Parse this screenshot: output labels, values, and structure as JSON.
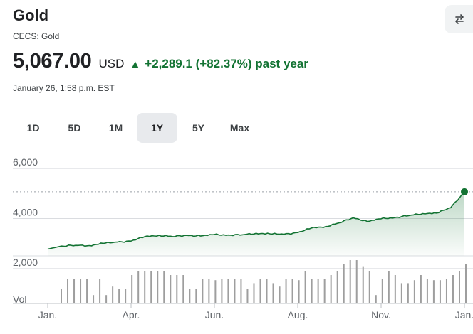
{
  "header": {
    "title": "Gold",
    "source": "CECS: Gold",
    "price": "5,067.00",
    "currency": "USD",
    "change_arrow": "▲",
    "change_text": "+2,289.1 (+82.37%) past year",
    "timestamp": "January 26, 1:58 p.m. EST",
    "accent_color": "#137333",
    "compare_icon": "swap-arrows-icon"
  },
  "tabs": [
    {
      "label": "1D",
      "active": false
    },
    {
      "label": "5D",
      "active": false
    },
    {
      "label": "1M",
      "active": false
    },
    {
      "label": "1Y",
      "active": true
    },
    {
      "label": "5Y",
      "active": false
    },
    {
      "label": "Max",
      "active": false
    }
  ],
  "chart_data": {
    "type": "area",
    "y_tick_labels": [
      "6,000",
      "4,000",
      "2,000"
    ],
    "y_ticks": [
      6000,
      4000,
      2000
    ],
    "ylim": [
      1600,
      6400
    ],
    "x_tick_labels": [
      "Jan.",
      "Apr.",
      "Jun.",
      "Aug.",
      "Nov.",
      "Jan."
    ],
    "x_tick_positions": [
      0,
      2.0,
      4.0,
      6.0,
      8.0,
      10.0
    ],
    "xlim": [
      0,
      10.0
    ],
    "previous_close_reference": 5067,
    "last_point": {
      "x": 10.0,
      "y": 5067
    },
    "series": [
      {
        "x": [
          0,
          0.33,
          0.67,
          1.0,
          1.33,
          1.67,
          2.0,
          2.33,
          2.67,
          3.0,
          3.33,
          3.67,
          4.0,
          4.33,
          4.67,
          5.0,
          5.33,
          5.67,
          6.0,
          6.33,
          6.67,
          7.0,
          7.33,
          7.67,
          8.0,
          8.33,
          8.67,
          9.0,
          9.33,
          9.67,
          10.0
        ],
        "y": [
          2780,
          2900,
          2930,
          2920,
          3010,
          3060,
          3100,
          3280,
          3330,
          3280,
          3330,
          3300,
          3360,
          3340,
          3350,
          3410,
          3390,
          3370,
          3440,
          3620,
          3680,
          3830,
          4030,
          3880,
          3990,
          4040,
          4120,
          4200,
          4220,
          4430,
          5067
        ]
      }
    ],
    "volume_label": "Vol",
    "volume": [
      0.33,
      0.56,
      0.56,
      0.56,
      0.56,
      0.18,
      0.56,
      0.18,
      0.38,
      0.33,
      0.33,
      0.65,
      0.74,
      0.74,
      0.74,
      0.74,
      0.74,
      0.65,
      0.65,
      0.65,
      0.33,
      0.33,
      0.56,
      0.56,
      0.53,
      0.56,
      0.56,
      0.56,
      0.56,
      0.33,
      0.46,
      0.56,
      0.56,
      0.46,
      0.38,
      0.56,
      0.56,
      0.53,
      0.74,
      0.56,
      0.56,
      0.56,
      0.65,
      0.74,
      0.91,
      1.0,
      1.0,
      0.84,
      0.74,
      0.18,
      0.56,
      0.74,
      0.65,
      0.46,
      0.46,
      0.53,
      0.65,
      0.56,
      0.53,
      0.53,
      0.56,
      0.65,
      0.74,
      0.91
    ],
    "grid": true
  }
}
